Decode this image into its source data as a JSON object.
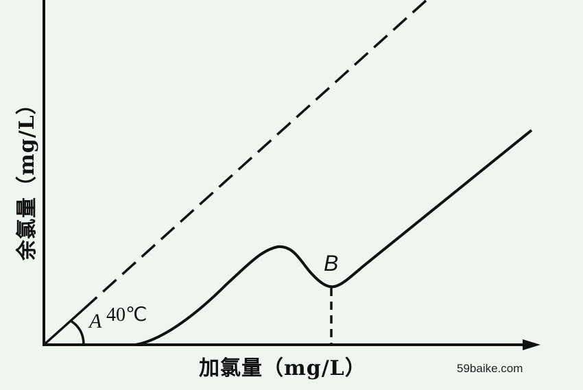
{
  "diagram": {
    "x_axis_label": "加氯量（mg/L）",
    "y_axis_label": "余氯量（mg/L）",
    "point_a_label": "A",
    "angle_label": "40℃",
    "point_b_label": "B",
    "watermark": "59baike.com",
    "line_color": "#111111",
    "background_color": "#eef6ef"
  }
}
